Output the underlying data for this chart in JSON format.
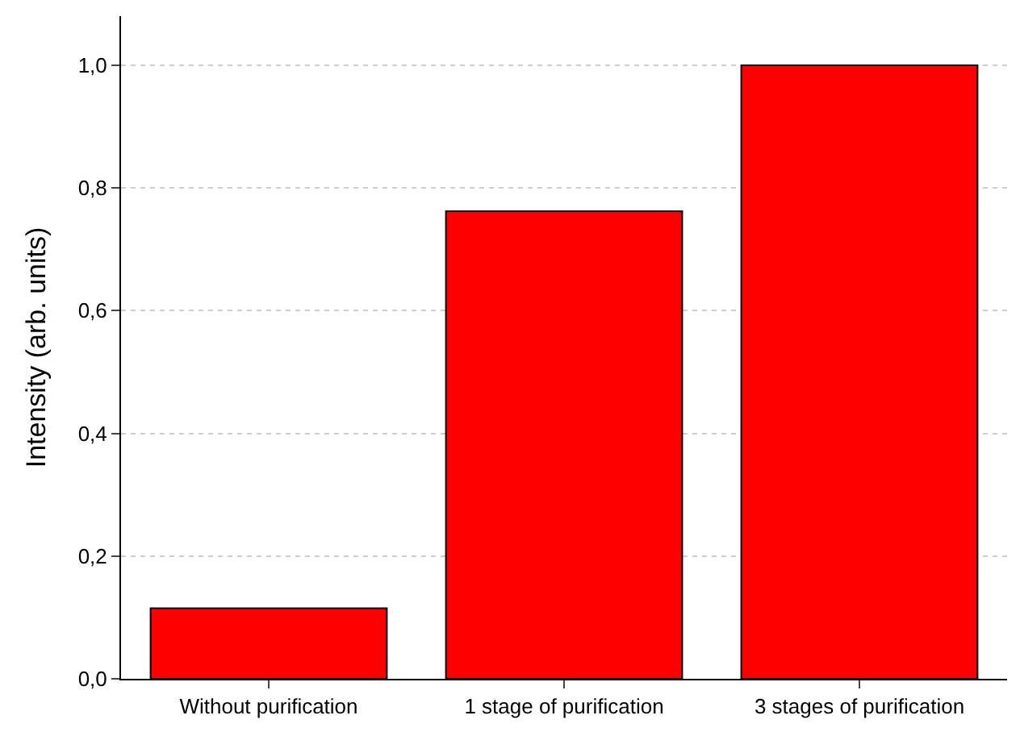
{
  "chart_data": {
    "type": "bar",
    "ylabel": "Intensity (arb. units)",
    "categories": [
      "Without purification",
      "1 stage of purification",
      "3 stages of purification"
    ],
    "values": [
      0.115,
      0.762,
      1.0
    ],
    "color": "#ff0000",
    "ylim": [
      0,
      1.08
    ],
    "yticks": [
      {
        "value": 0,
        "label": "0,0"
      },
      {
        "value": 0.2,
        "label": "0,2"
      },
      {
        "value": 0.4,
        "label": "0,4"
      },
      {
        "value": 0.6,
        "label": "0,6"
      },
      {
        "value": 0.8,
        "label": "0,8"
      },
      {
        "value": 1.0,
        "label": "1,0"
      }
    ],
    "grid": "y"
  }
}
